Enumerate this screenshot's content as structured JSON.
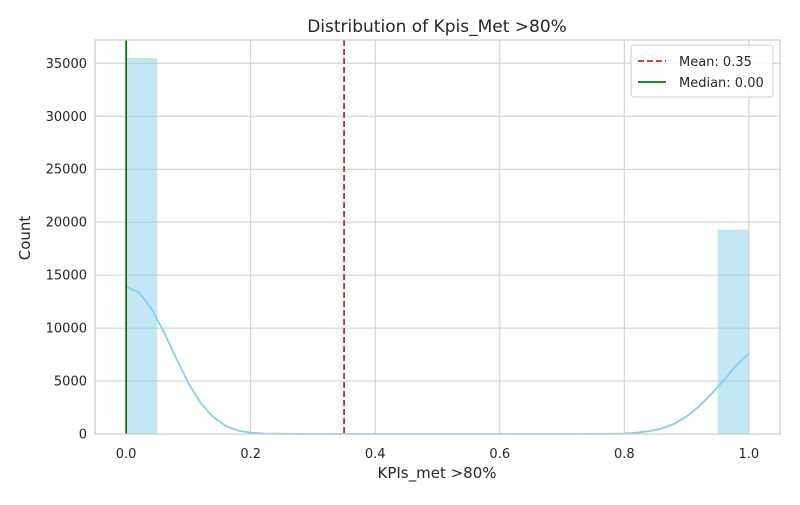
{
  "chart_data": {
    "type": "histogram",
    "title": "Distribution of Kpis_Met >80%",
    "xlabel": "KPIs_met >80%",
    "ylabel": "Count",
    "xlim": [
      -0.05,
      1.05
    ],
    "ylim": [
      0,
      37200
    ],
    "x_ticks": [
      0.0,
      0.2,
      0.4,
      0.6,
      0.8,
      1.0
    ],
    "x_tick_labels": [
      "0.0",
      "0.2",
      "0.4",
      "0.6",
      "0.8",
      "1.0"
    ],
    "y_ticks": [
      0,
      5000,
      10000,
      15000,
      20000,
      25000,
      30000,
      35000
    ],
    "y_tick_labels": [
      "0",
      "5000",
      "10000",
      "15000",
      "20000",
      "25000",
      "30000",
      "35000"
    ],
    "grid": true,
    "bins": [
      {
        "x0": 0.0,
        "x1": 0.05,
        "count": 35500
      },
      {
        "x0": 0.95,
        "x1": 1.0,
        "count": 19300
      }
    ],
    "kde": {
      "x": [
        0.0,
        0.02,
        0.04,
        0.06,
        0.08,
        0.1,
        0.12,
        0.14,
        0.16,
        0.18,
        0.2,
        0.22,
        0.25,
        0.3,
        0.5,
        0.7,
        0.75,
        0.78,
        0.8,
        0.82,
        0.84,
        0.86,
        0.88,
        0.9,
        0.92,
        0.94,
        0.96,
        0.98,
        1.0
      ],
      "y": [
        13900,
        13400,
        11900,
        9700,
        7200,
        4800,
        2900,
        1600,
        750,
        320,
        130,
        50,
        15,
        0,
        0,
        0,
        5,
        20,
        50,
        120,
        260,
        520,
        950,
        1650,
        2600,
        3800,
        5100,
        6500,
        7600
      ]
    },
    "reference_lines": [
      {
        "name": "Mean: 0.35",
        "x": 0.35,
        "style": "dashed",
        "color": "#d62728"
      },
      {
        "name": "Median: 0.00",
        "x": 0.0,
        "style": "solid",
        "color": "#008000"
      }
    ],
    "legend_position": "top-right",
    "colors": {
      "bar": "#87ceeb",
      "kde": "#87ceeb",
      "grid": "#cccccc",
      "axes": "#cccccc"
    }
  }
}
